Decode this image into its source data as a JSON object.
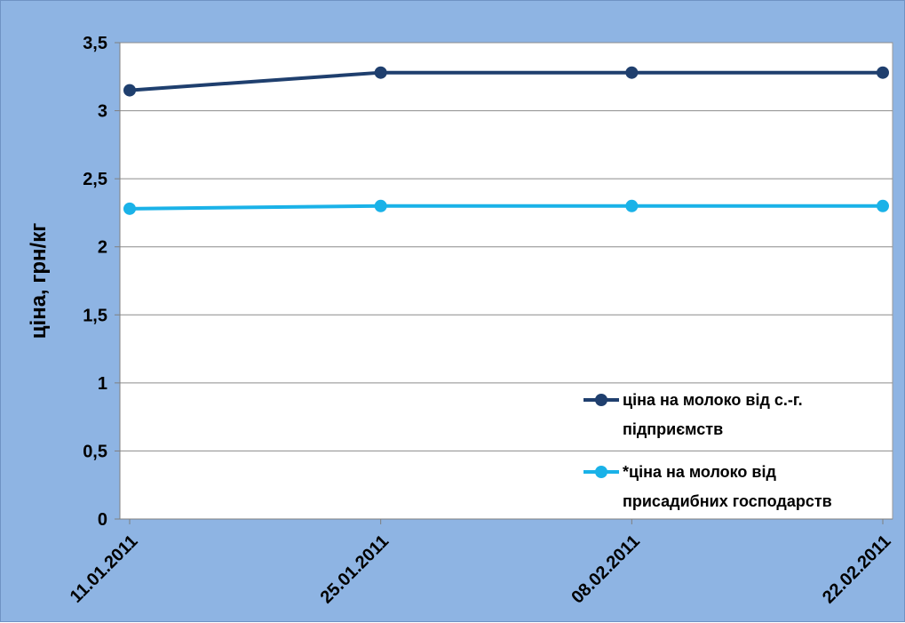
{
  "chart_data": {
    "type": "line",
    "title": "",
    "xlabel": "",
    "ylabel": "ціна, грн/кг",
    "categories": [
      "11.01.2011",
      "25.01.2011",
      "08.02.2011",
      "22.02.2011"
    ],
    "ylim": [
      0,
      3.5
    ],
    "yticks": [
      "0",
      "0,5",
      "1",
      "1,5",
      "2",
      "2,5",
      "3",
      "3,5"
    ],
    "grid": true,
    "legend_position": "bottom-right",
    "series": [
      {
        "name_lines": [
          "ціна на молоко  від с.-г.",
          "підприємств"
        ],
        "values": [
          3.15,
          3.28,
          3.28,
          3.28
        ],
        "color": "#1f3f6e"
      },
      {
        "name_lines": [
          "*ціна на молоко  від",
          "присадибних господарств"
        ],
        "values": [
          2.28,
          2.3,
          2.3,
          2.3
        ],
        "color": "#1ab2e8"
      }
    ]
  },
  "colors": {
    "background": "#8eb4e3",
    "plot_area": "#ffffff",
    "gridline": "#8c8c8c"
  }
}
